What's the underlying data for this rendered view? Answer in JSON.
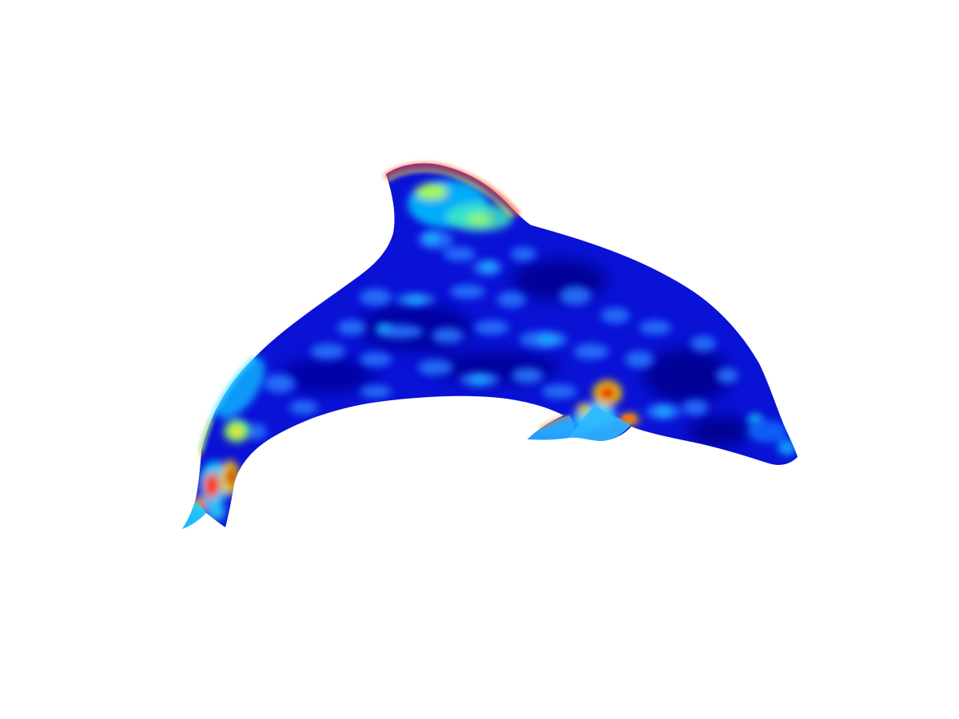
{
  "scene": {
    "subject": "dolphin-mesh",
    "background_color": "#ffffff",
    "colormap": "jet",
    "colormap_stops": [
      "#00007f",
      "#0000d8",
      "#0030ff",
      "#0090ff",
      "#00e0ff",
      "#80ff80",
      "#ffe000",
      "#ff6000",
      "#d00000"
    ]
  }
}
